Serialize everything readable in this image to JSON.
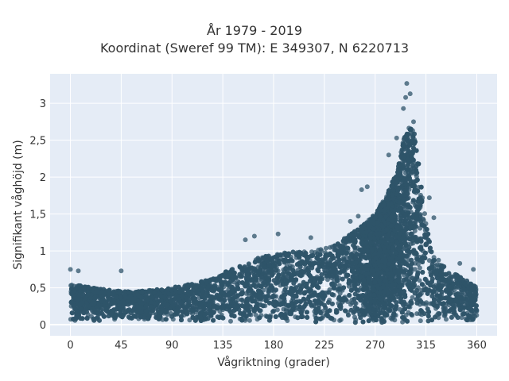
{
  "chart_data": {
    "type": "scatter",
    "title": "År 1979 - 2019",
    "subtitle": "Koordinat (Sweref 99 TM): E 349307, N 6220713",
    "xlabel": "Vågriktning (grader)",
    "ylabel": "Signifikant våghöjd (m)",
    "xlim": [
      -18,
      378
    ],
    "ylim": [
      -0.15,
      3.4
    ],
    "grid": true,
    "x_ticks": [
      0,
      45,
      90,
      135,
      180,
      225,
      270,
      315,
      360
    ],
    "x_tick_labels": [
      "0",
      "45",
      "90",
      "135",
      "180",
      "225",
      "270",
      "315",
      "360"
    ],
    "y_ticks": [
      0,
      0.5,
      1,
      1.5,
      2,
      2.5,
      3
    ],
    "y_tick_labels": [
      "0",
      "0,5",
      "1",
      "1,5",
      "2",
      "2,5",
      "3"
    ],
    "marker_color": "#2f5469",
    "plot_background": "#e5ecf6",
    "envelope": {
      "description_direction_deg": [
        0,
        20,
        45,
        60,
        90,
        120,
        135,
        150,
        165,
        180,
        200,
        225,
        240,
        255,
        270,
        280,
        290,
        295,
        300,
        305,
        310,
        315,
        320,
        330,
        340,
        350,
        360
      ],
      "typical_max_m": [
        0.55,
        0.5,
        0.45,
        0.45,
        0.5,
        0.6,
        0.7,
        0.8,
        0.9,
        0.95,
        1.0,
        1.05,
        1.15,
        1.3,
        1.5,
        1.75,
        2.1,
        2.5,
        2.7,
        2.6,
        2.0,
        1.4,
        1.0,
        0.8,
        0.7,
        0.6,
        0.55
      ],
      "typical_min_m": [
        0.05,
        0.05,
        0.07,
        0.07,
        0.06,
        0.05,
        0.03,
        0.03,
        0.02,
        0.03,
        0.03,
        0.03,
        0.03,
        0.03,
        0.03,
        0.03,
        0.03,
        0.03,
        0.03,
        0.03,
        0.03,
        0.03,
        0.03,
        0.04,
        0.04,
        0.05,
        0.05
      ]
    },
    "outliers": [
      {
        "x": 0,
        "y": 0.75
      },
      {
        "x": 7,
        "y": 0.73
      },
      {
        "x": 45,
        "y": 0.73
      },
      {
        "x": 155,
        "y": 1.15
      },
      {
        "x": 163,
        "y": 1.2
      },
      {
        "x": 184,
        "y": 1.23
      },
      {
        "x": 213,
        "y": 1.18
      },
      {
        "x": 248,
        "y": 1.4
      },
      {
        "x": 255,
        "y": 1.47
      },
      {
        "x": 258,
        "y": 1.83
      },
      {
        "x": 263,
        "y": 1.87
      },
      {
        "x": 282,
        "y": 2.3
      },
      {
        "x": 289,
        "y": 2.53
      },
      {
        "x": 295,
        "y": 2.93
      },
      {
        "x": 297,
        "y": 3.08
      },
      {
        "x": 298,
        "y": 3.27
      },
      {
        "x": 301,
        "y": 3.13
      },
      {
        "x": 304,
        "y": 2.75
      },
      {
        "x": 318,
        "y": 1.72
      },
      {
        "x": 322,
        "y": 1.45
      },
      {
        "x": 345,
        "y": 0.83
      },
      {
        "x": 357,
        "y": 0.75
      }
    ]
  }
}
